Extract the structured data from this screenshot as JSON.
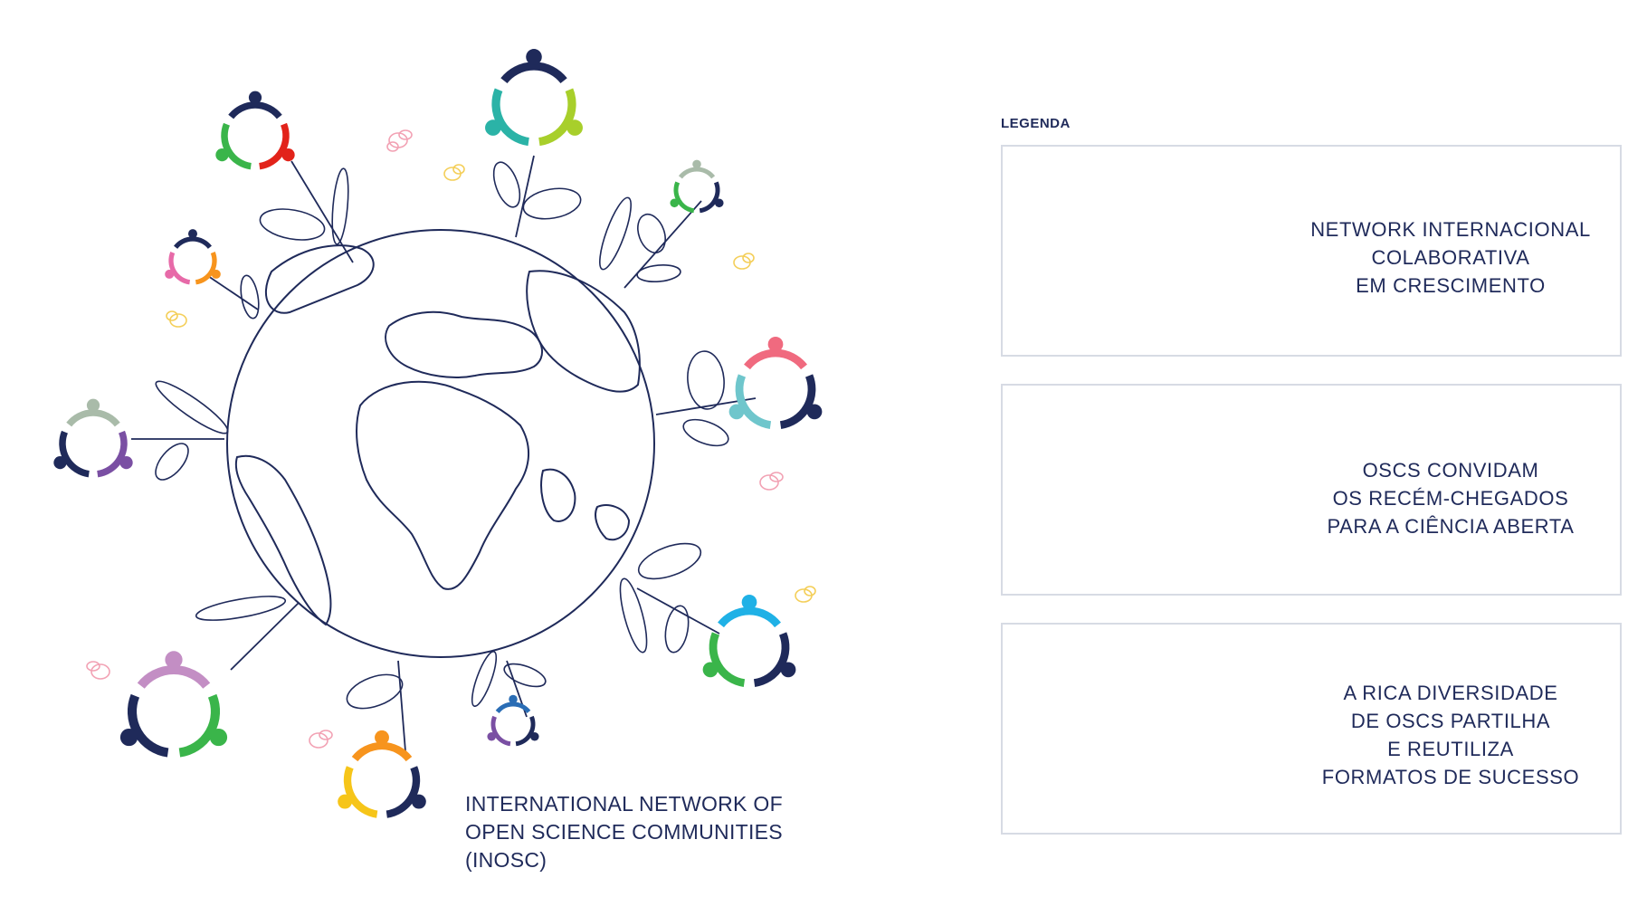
{
  "caption": {
    "line1": "INTERNATIONAL NETWORK OF",
    "line2": "OPEN SCIENCE COMMUNITIES",
    "line3": "(INOSC)"
  },
  "legend": {
    "title": "LEGENDA",
    "items": [
      {
        "lines": [
          "NETWORK INTERNACIONAL",
          "COLABORATIVA",
          "EM CRESCIMENTO"
        ]
      },
      {
        "lines": [
          "OSCS CONVIDAM",
          "OS RECÉM-CHEGADOS",
          "PARA A CIÊNCIA ABERTA"
        ]
      },
      {
        "lines": [
          "A RICA DIVERSIDADE",
          "DE OSCS PARTILHA",
          "E REUTILIZA",
          "FORMATOS DE SUCESSO"
        ]
      }
    ]
  },
  "colors": {
    "navy": "#1f2a5a",
    "red": "#e2231a",
    "green": "#3ab54a",
    "teal": "#2bb3a7",
    "lime": "#a8cf2b",
    "orange": "#f7941d",
    "pink": "#e76aa8",
    "purple": "#7a4fa3",
    "sky": "#1fb1e6",
    "yellow": "#f6c519",
    "coral": "#f06a7f",
    "sage": "#a9bba9",
    "lilac": "#c38ec4",
    "aqua": "#6fc6cc",
    "blue": "#2a6db5"
  }
}
